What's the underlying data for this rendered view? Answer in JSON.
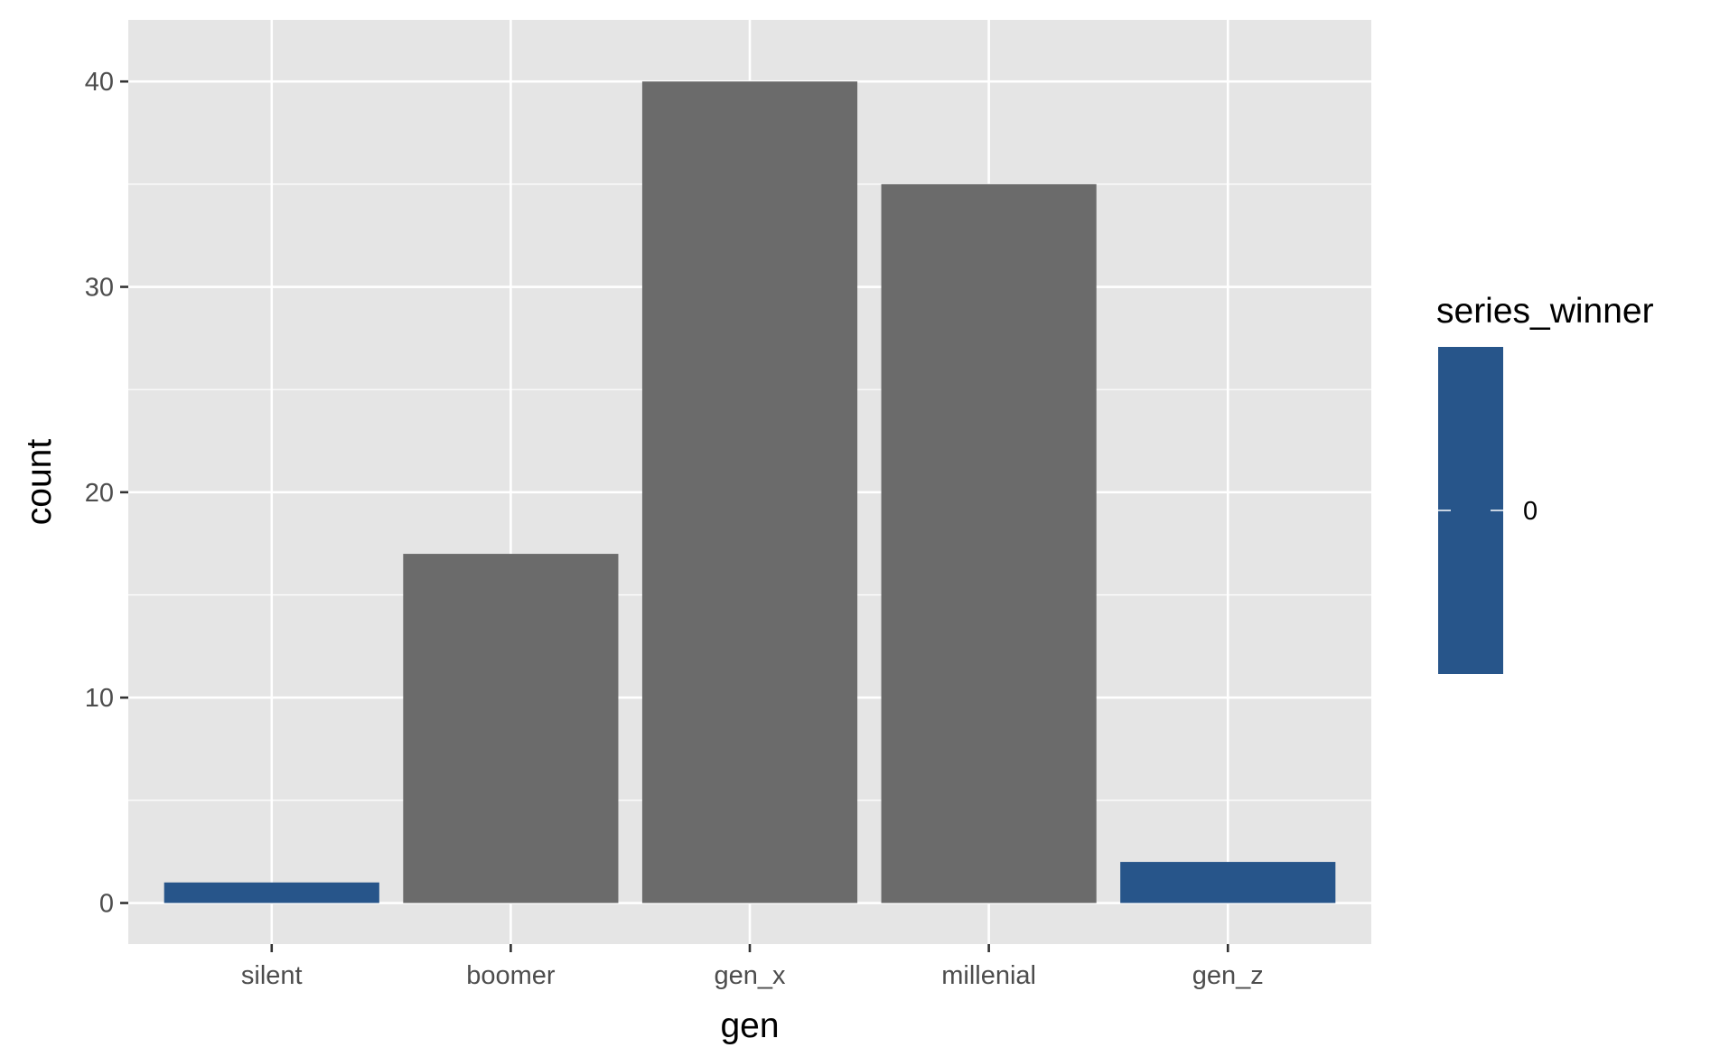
{
  "chart_data": {
    "type": "bar",
    "categories": [
      "silent",
      "boomer",
      "gen_x",
      "millenial",
      "gen_z"
    ],
    "values": [
      1,
      17,
      40,
      35,
      2
    ],
    "bar_colors": [
      "#27558A",
      "#6B6B6B",
      "#6B6B6B",
      "#6B6B6B",
      "#27558A"
    ],
    "xlabel": "gen",
    "ylabel": "count",
    "ylim": [
      -2,
      43
    ],
    "yticks": [
      0,
      10,
      20,
      30,
      40
    ],
    "grid": true,
    "legend": {
      "title": "series_winner",
      "position": "right",
      "color": "#27558A",
      "labels": [
        "0"
      ]
    }
  },
  "colors": {
    "panel_background": "#E5E5E5",
    "grid_line": "#FFFFFF",
    "tick_text": "#4D4D4D",
    "axis_tick": "#333333"
  }
}
